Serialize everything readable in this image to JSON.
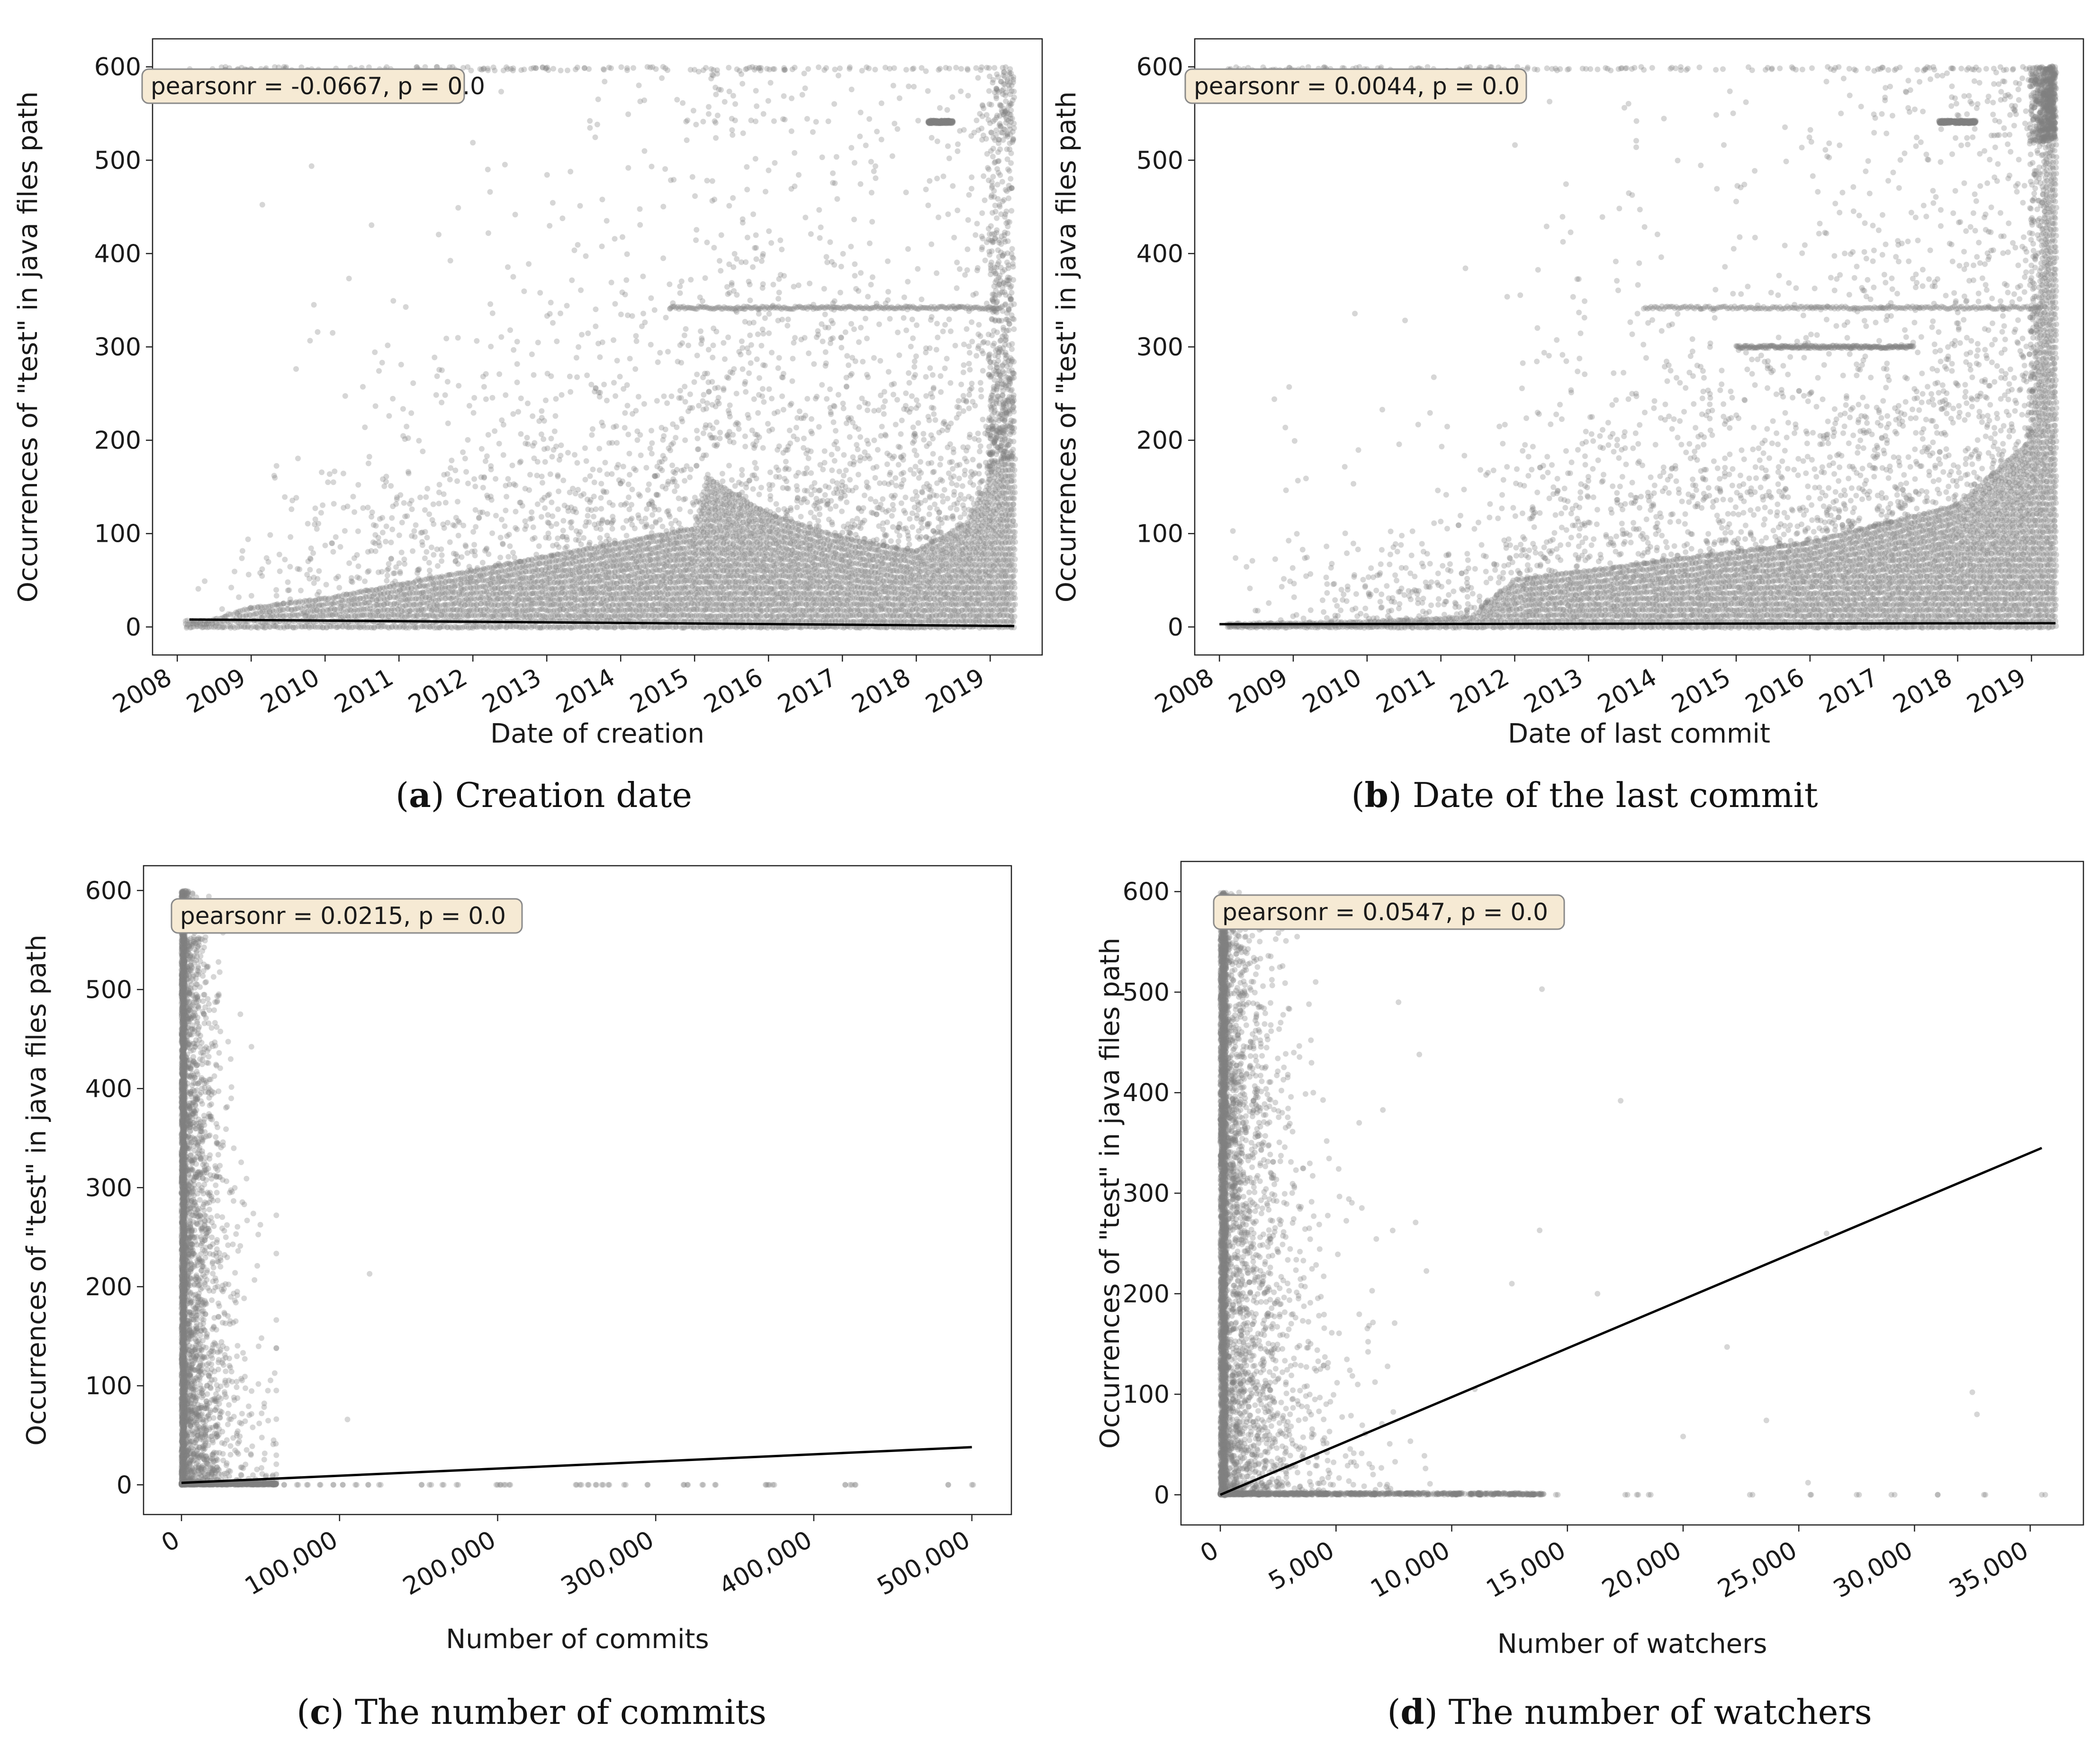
{
  "chart_data": [
    {
      "id": "a",
      "type": "scatter",
      "x_kind": "date",
      "xlabel": "Date of creation",
      "ylabel": "Occurrences of \"test\" in java files path",
      "xlim": [
        "2007-09-01",
        "2019-09-15"
      ],
      "ylim": [
        -30,
        630
      ],
      "x_ticks": [
        "2008",
        "2009",
        "2010",
        "2011",
        "2012",
        "2013",
        "2014",
        "2015",
        "2016",
        "2017",
        "2018",
        "2019"
      ],
      "y_ticks": [
        0,
        100,
        200,
        300,
        400,
        500,
        600
      ],
      "annotation": "pearsonr = -0.0667, p = 0.0",
      "regression": {
        "x": [
          "2008-03-01",
          "2019-04-30"
        ],
        "y": [
          8,
          1
        ]
      },
      "caption": {
        "label": "a",
        "text": "Creation date"
      },
      "density": [
        {
          "x": "2008-06-01",
          "band": 6
        },
        {
          "x": "2009-01-01",
          "band": 20
        },
        {
          "x": "2010-01-01",
          "band": 30
        },
        {
          "x": "2011-01-01",
          "band": 45
        },
        {
          "x": "2012-01-01",
          "band": 60
        },
        {
          "x": "2013-01-01",
          "band": 75
        },
        {
          "x": "2014-01-01",
          "band": 90
        },
        {
          "x": "2015-01-01",
          "band": 105
        },
        {
          "x": "2015-03-01",
          "band": 160
        },
        {
          "x": "2016-01-01",
          "band": 120
        },
        {
          "x": "2017-01-01",
          "band": 95
        },
        {
          "x": "2018-01-01",
          "band": 80
        },
        {
          "x": "2018-09-01",
          "band": 110
        },
        {
          "x": "2019-03-01",
          "band": 180
        }
      ],
      "clusters": [
        {
          "x_from": "2014-09-01",
          "x_to": "2019-03-01",
          "y": 342
        },
        {
          "x_from": "2018-03-01",
          "x_to": "2018-07-01",
          "y": 541
        }
      ]
    },
    {
      "id": "b",
      "type": "scatter",
      "x_kind": "date",
      "xlabel": "Date of last commit",
      "ylabel": "Occurrences of \"test\" in java files path",
      "xlim": [
        "2007-09-01",
        "2019-09-15"
      ],
      "ylim": [
        -30,
        630
      ],
      "x_ticks": [
        "2008",
        "2009",
        "2010",
        "2011",
        "2012",
        "2013",
        "2014",
        "2015",
        "2016",
        "2017",
        "2018",
        "2019"
      ],
      "y_ticks": [
        0,
        100,
        200,
        300,
        400,
        500,
        600
      ],
      "annotation": "pearsonr = 0.0044, p = 0.0",
      "regression": {
        "x": [
          "2008-01-01",
          "2019-04-30"
        ],
        "y": [
          3,
          4
        ]
      },
      "caption": {
        "label": "b",
        "text": "Date of the last commit"
      },
      "density": [
        {
          "x": "2008-06-01",
          "band": 3
        },
        {
          "x": "2010-01-01",
          "band": 5
        },
        {
          "x": "2011-06-01",
          "band": 10
        },
        {
          "x": "2012-01-01",
          "band": 50
        },
        {
          "x": "2013-01-01",
          "band": 60
        },
        {
          "x": "2014-01-01",
          "band": 70
        },
        {
          "x": "2015-01-01",
          "band": 80
        },
        {
          "x": "2016-01-01",
          "band": 90
        },
        {
          "x": "2017-01-01",
          "band": 110
        },
        {
          "x": "2018-01-01",
          "band": 130
        },
        {
          "x": "2019-01-01",
          "band": 200
        },
        {
          "x": "2019-04-01",
          "band": 600
        }
      ],
      "clusters": [
        {
          "x_from": "2013-10-01",
          "x_to": "2019-03-01",
          "y": 342
        },
        {
          "x_from": "2015-01-01",
          "x_to": "2017-06-01",
          "y": 300
        },
        {
          "x_from": "2017-10-01",
          "x_to": "2018-04-01",
          "y": 541
        }
      ]
    },
    {
      "id": "c",
      "type": "scatter",
      "x_kind": "number",
      "xlabel": "Number of commits",
      "ylabel": "Occurrences of \"test\" in java files path",
      "xlim": [
        -24000,
        525000
      ],
      "ylim": [
        -30,
        625
      ],
      "x_ticks": [
        0,
        100000,
        200000,
        300000,
        400000,
        500000
      ],
      "x_tick_labels": [
        "0",
        "100,000",
        "200,000",
        "300,000",
        "400,000",
        "500,000"
      ],
      "y_ticks": [
        0,
        100,
        200,
        300,
        400,
        500,
        600
      ],
      "annotation": "pearsonr = 0.0215, p = 0.0",
      "regression": {
        "x": [
          0,
          500000
        ],
        "y": [
          2,
          38
        ]
      },
      "caption": {
        "label": "c",
        "text": "The number of commits"
      },
      "spread": {
        "x_scale": 12000,
        "x_max": 60000
      },
      "zero_points": [
        52000,
        58000,
        65000,
        73000,
        80000,
        88000,
        96000,
        102000,
        110000,
        118000,
        125000,
        152000,
        158000,
        165000,
        175000,
        200000,
        202000,
        205000,
        208000,
        250000,
        253000,
        257000,
        262000,
        266000,
        270000,
        280000,
        295000,
        318000,
        320000,
        330000,
        338000,
        370000,
        372000,
        375000,
        420000,
        423000,
        426000,
        485000,
        500000
      ],
      "outliers": [
        {
          "x": 119000,
          "y": 213
        },
        {
          "x": 105000,
          "y": 66
        }
      ]
    },
    {
      "id": "d",
      "type": "scatter",
      "x_kind": "number",
      "xlabel": "Number of watchers",
      "ylabel": "Occurrences of \"test\" in java files path",
      "xlim": [
        -1700,
        37300
      ],
      "ylim": [
        -30,
        630
      ],
      "x_ticks": [
        0,
        5000,
        10000,
        15000,
        20000,
        25000,
        30000,
        35000
      ],
      "x_tick_labels": [
        "0",
        "5,000",
        "10,000",
        "15,000",
        "20,000",
        "25,000",
        "30,000",
        "35,000"
      ],
      "y_ticks": [
        0,
        100,
        200,
        300,
        400,
        500,
        600
      ],
      "annotation": "pearsonr = 0.0547, p = 0.0",
      "regression": {
        "x": [
          0,
          35500
        ],
        "y": [
          0,
          345
        ]
      },
      "caption": {
        "label": "d",
        "text": "The number of watchers"
      },
      "spread": {
        "x_scale": 1500,
        "x_max": 14000
      },
      "zero_points": [
        11200,
        11800,
        12500,
        13400,
        14500,
        17500,
        18000,
        18600,
        23000,
        25500,
        27500,
        29000,
        31000,
        33000,
        35500
      ],
      "outliers": [
        {
          "x": 13900,
          "y": 503
        },
        {
          "x": 17300,
          "y": 392
        },
        {
          "x": 11000,
          "y": 105
        },
        {
          "x": 16300,
          "y": 200
        },
        {
          "x": 21900,
          "y": 147
        },
        {
          "x": 23600,
          "y": 74
        },
        {
          "x": 32500,
          "y": 102
        },
        {
          "x": 32700,
          "y": 80
        },
        {
          "x": 26200,
          "y": 260
        },
        {
          "x": 20000,
          "y": 58
        },
        {
          "x": 25400,
          "y": 12
        },
        {
          "x": 13800,
          "y": 263
        },
        {
          "x": 12600,
          "y": 210
        },
        {
          "x": 7700,
          "y": 490
        },
        {
          "x": 8600,
          "y": 438
        },
        {
          "x": 6000,
          "y": 370
        }
      ]
    }
  ]
}
